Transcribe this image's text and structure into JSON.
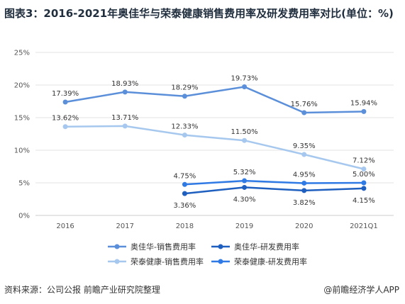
{
  "title": "图表3：2016-2021年奥佳华与荣泰健康销售费用率及研发费用率对比(单位：%)",
  "source": "资料来源：公司公报 前瞻产业研究院整理",
  "brand": "@前瞻经济学人APP",
  "colors": {
    "sales_ojh": "#5b8fd9",
    "rd_ojh": "#1f5fbf",
    "sales_rt": "#a6c8ee",
    "rd_rt": "#2f7ae5",
    "grid": "#e3e3e3",
    "axis": "#cccccc"
  },
  "chart_data": {
    "type": "line",
    "categories": [
      "2016",
      "2017",
      "2018",
      "2019",
      "2020",
      "2021Q1"
    ],
    "ylim": [
      0,
      25
    ],
    "yticks": [
      "0%",
      "5%",
      "10%",
      "15%",
      "20%",
      "25%"
    ],
    "grid": true,
    "legend_position": "bottom",
    "series": [
      {
        "name": "奥佳华-销售费用率",
        "color": "#5b8fd9",
        "values": [
          17.39,
          18.93,
          18.29,
          19.73,
          15.76,
          15.94
        ],
        "labels": [
          "17.39%",
          "18.93%",
          "18.29%",
          "19.73%",
          "15.76%",
          "15.94%"
        ],
        "label_pos": "above"
      },
      {
        "name": "奥佳华-研发费用率",
        "color": "#1f5fbf",
        "values": [
          null,
          null,
          3.36,
          4.3,
          3.82,
          4.15
        ],
        "labels": [
          "",
          "",
          "3.36%",
          "4.30%",
          "3.82%",
          "4.15%"
        ],
        "label_pos": "below"
      },
      {
        "name": "荣泰健康-销售费用率",
        "color": "#a6c8ee",
        "values": [
          13.62,
          13.71,
          12.33,
          11.5,
          9.35,
          7.12
        ],
        "labels": [
          "13.62%",
          "13.71%",
          "12.33%",
          "11.50%",
          "9.35%",
          "7.12%"
        ],
        "label_pos": "above"
      },
      {
        "name": "荣泰健康-研发费用率",
        "color": "#2f7ae5",
        "values": [
          null,
          null,
          4.75,
          5.32,
          4.95,
          5.0
        ],
        "labels": [
          "",
          "",
          "4.75%",
          "5.32%",
          "4.95%",
          "5.00%"
        ],
        "label_pos": "above"
      }
    ]
  }
}
